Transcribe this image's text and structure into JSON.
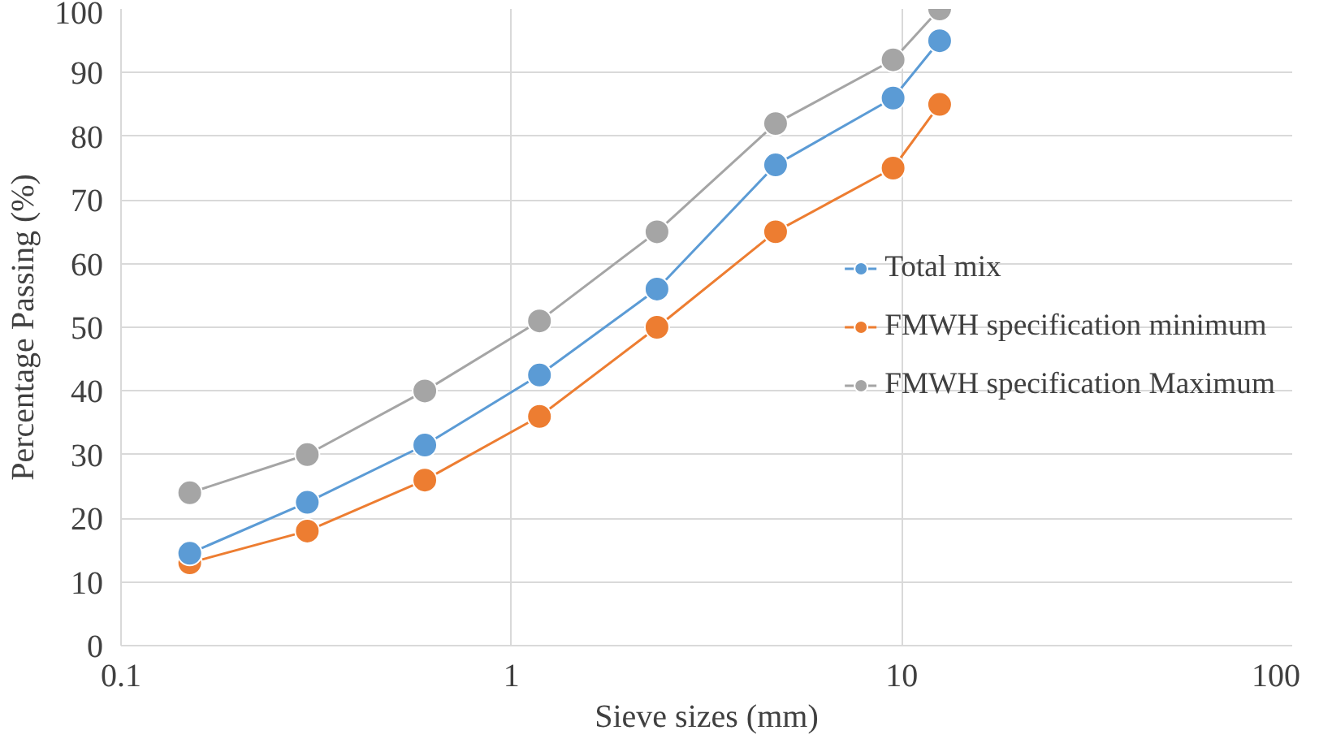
{
  "chart_data": {
    "type": "line",
    "xlabel": "Sieve sizes (mm)",
    "ylabel": "Percentage Passing (%)",
    "log": "x",
    "x": [
      0.15,
      0.3,
      0.6,
      1.18,
      2.36,
      4.75,
      9.5,
      12.5
    ],
    "xlim": [
      0.1,
      100
    ],
    "xticks": [
      0.1,
      1,
      10,
      100
    ],
    "ylim": [
      0,
      100
    ],
    "yticks": [
      0,
      10,
      20,
      30,
      40,
      50,
      60,
      70,
      80,
      90,
      100
    ],
    "grid": true,
    "legend": "right",
    "marker": "circle",
    "line_style": "solid",
    "series": [
      {
        "name": "Total mix",
        "color": "#5b9bd5",
        "values": [
          14.5,
          22.5,
          31.5,
          42.5,
          56,
          75.5,
          86,
          95
        ]
      },
      {
        "name": "FMWH specification minimum",
        "color": "#ed7d31",
        "values": [
          13,
          18,
          26,
          36,
          50,
          65,
          75,
          85
        ]
      },
      {
        "name": "FMWH specification Maximum",
        "color": "#a5a5a5",
        "values": [
          24,
          30,
          40,
          51,
          65,
          82,
          92,
          100
        ]
      }
    ]
  }
}
